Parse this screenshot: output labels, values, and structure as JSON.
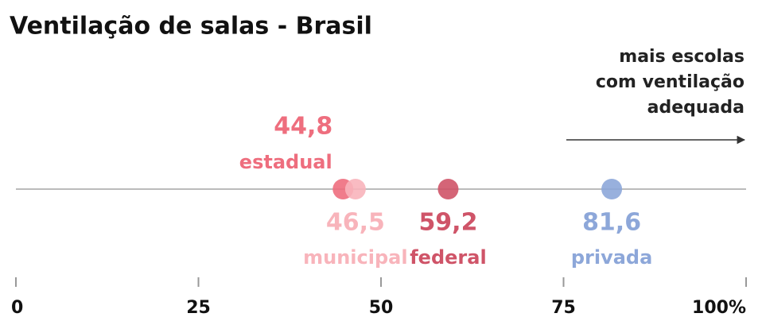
{
  "chart_data": {
    "type": "dot",
    "title": "Ventilação de salas - Brasil",
    "annotation": [
      "mais escolas",
      "com ventilação",
      "adequada"
    ],
    "categories": [
      "estadual",
      "municipal",
      "federal",
      "privada"
    ],
    "values": [
      44.8,
      46.5,
      59.2,
      81.6
    ],
    "value_labels": [
      "44,8",
      "46,5",
      "59,2",
      "81,6"
    ],
    "colors": [
      "#ee6e7e",
      "#f8b4bb",
      "#cf5468",
      "#8da7d9"
    ],
    "xlim": [
      0,
      100
    ],
    "xticks": [
      0,
      25,
      50,
      75,
      {
        "value": 100,
        "label": "100%"
      }
    ]
  }
}
